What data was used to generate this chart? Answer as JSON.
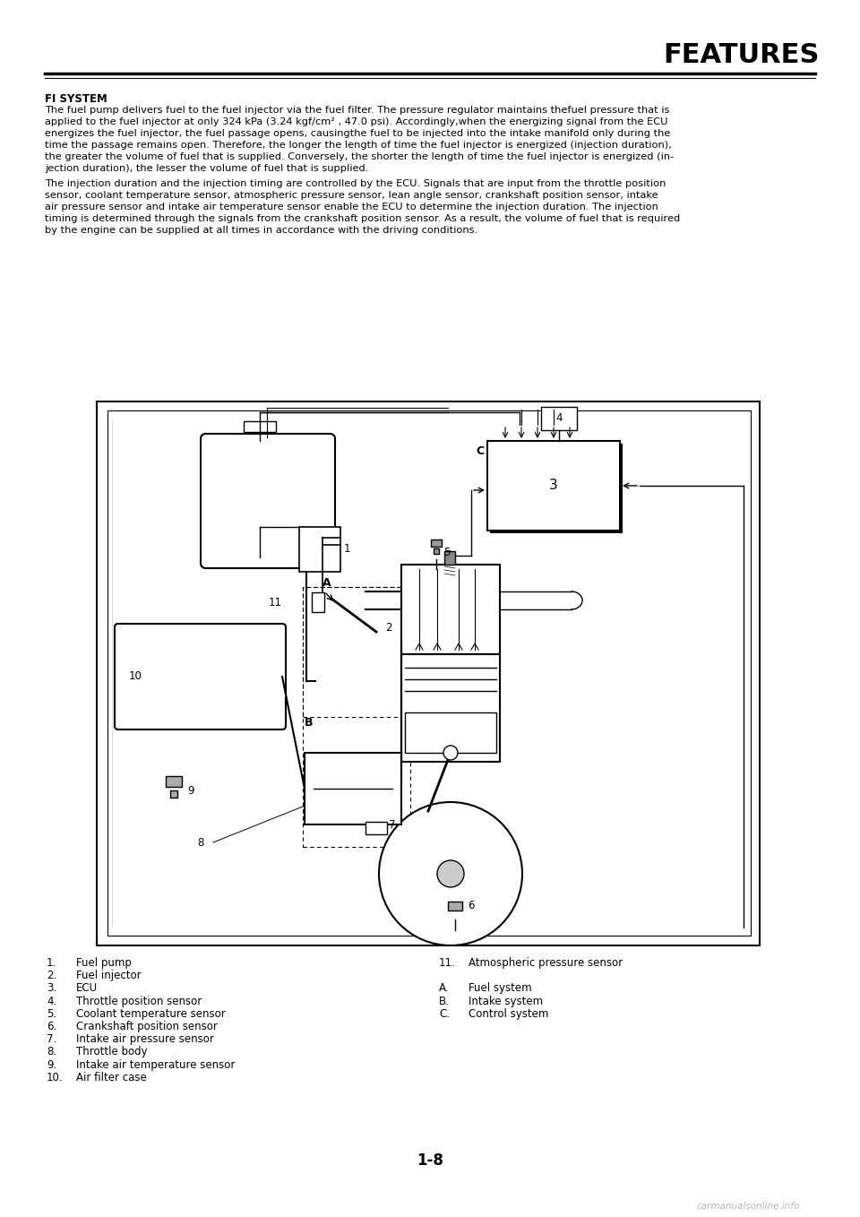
{
  "page_title": "FEATURES",
  "section_title": "FI SYSTEM",
  "para1": [
    "The fuel pump delivers fuel to the fuel injector via the fuel filter. The pressure regulator maintains thefuel pressure that is",
    "applied to the fuel injector at only 324 kPa (3.24 kgf/cm² , 47.0 psi). Accordingly,when the energizing signal from the ECU",
    "energizes the fuel injector, the fuel passage opens, causingthe fuel to be injected into the intake manifold only during the",
    "time the passage remains open. Therefore, the longer the length of time the fuel injector is energized (injection duration),",
    "the greater the volume of fuel that is supplied. Conversely, the shorter the length of time the fuel injector is energized (in-",
    "jection duration), the lesser the volume of fuel that is supplied."
  ],
  "para2": [
    "The injection duration and the injection timing are controlled by the ECU. Signals that are input from the throttle position",
    "sensor, coolant temperature sensor, atmospheric pressure sensor, lean angle sensor, crankshaft position sensor, intake",
    "air pressure sensor and intake air temperature sensor enable the ECU to determine the injection duration. The injection",
    "timing is determined through the signals from the crankshaft position sensor. As a result, the volume of fuel that is required",
    "by the engine can be supplied at all times in accordance with the driving conditions."
  ],
  "col1_items": [
    [
      "1.",
      "Fuel pump"
    ],
    [
      "2.",
      "Fuel injector"
    ],
    [
      "3.",
      "ECU"
    ],
    [
      "4.",
      "Throttle position sensor"
    ],
    [
      "5.",
      "Coolant temperature sensor"
    ],
    [
      "6.",
      "Crankshaft position sensor"
    ],
    [
      "7.",
      "Intake air pressure sensor"
    ],
    [
      "8.",
      "Throttle body"
    ],
    [
      "9.",
      "Intake air temperature sensor"
    ],
    [
      "10.",
      "Air filter case"
    ]
  ],
  "col2_items": [
    [
      "11.",
      "Atmospheric pressure sensor"
    ]
  ],
  "letter_items": [
    [
      "A.",
      "Fuel system"
    ],
    [
      "B.",
      "Intake system"
    ],
    [
      "C.",
      "Control system"
    ]
  ],
  "page_number": "1-8",
  "watermark": "carmanualsonline.info"
}
